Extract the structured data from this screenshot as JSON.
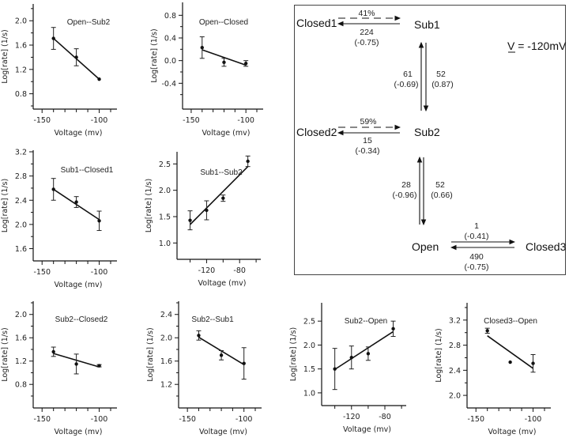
{
  "chart_data": [
    {
      "type": "scatter",
      "id": "open-sub2",
      "title": "Open--Sub2",
      "xlabel": "Voltage  (mv)",
      "ylabel": "Log[rate]  (1/s)",
      "xlim": [
        -155,
        -90
      ],
      "ylim": [
        0.6,
        2.25
      ],
      "xticks": [
        -150,
        -140,
        -130,
        -120,
        -110,
        -100,
        -90
      ],
      "xticklabels": [
        "-150",
        "",
        "",
        "",
        "",
        "-100",
        ""
      ],
      "yticks": [
        0.6,
        0.8,
        1.0,
        1.2,
        1.4,
        1.6,
        1.8,
        2.0,
        2.2
      ],
      "yticklabels": [
        "",
        "0.8",
        "",
        "1.2",
        "",
        "1.6",
        "",
        "2.0",
        ""
      ],
      "points": [
        {
          "x": -140,
          "y": 1.71,
          "err": 0.18
        },
        {
          "x": -120,
          "y": 1.4,
          "err": 0.14
        },
        {
          "x": -100,
          "y": 1.04,
          "err": 0
        }
      ],
      "fit": [
        [
          -140,
          1.71
        ],
        [
          -100,
          1.04
        ]
      ]
    },
    {
      "type": "scatter",
      "id": "open-closed",
      "title": "Open--Closed",
      "xlabel": "Voltage  (mv)",
      "ylabel": "Log[rate]  (1/s)",
      "xlim": [
        -155,
        -90
      ],
      "ylim": [
        -0.8,
        1.0
      ],
      "xticks": [
        -150,
        -140,
        -130,
        -120,
        -110,
        -100,
        -90
      ],
      "xticklabels": [
        "-150",
        "",
        "",
        "",
        "",
        "-100",
        ""
      ],
      "yticks": [
        -0.6,
        -0.4,
        -0.2,
        0.0,
        0.2,
        0.4,
        0.6,
        0.8
      ],
      "yticklabels": [
        "",
        "-0.4",
        "",
        "0.0",
        "",
        "0.4",
        "",
        "0.8"
      ],
      "points": [
        {
          "x": -140,
          "y": 0.23,
          "err": 0.19
        },
        {
          "x": -120,
          "y": -0.03,
          "err": 0.07
        },
        {
          "x": -100,
          "y": -0.05,
          "err": 0.05
        }
      ],
      "fit": [
        [
          -140,
          0.19
        ],
        [
          -100,
          -0.08
        ]
      ]
    },
    {
      "type": "scatter",
      "id": "sub1-closed1",
      "title": "Sub1--Closed1",
      "xlabel": "Voltage  (mv)",
      "ylabel": "Log[rate]  (1/s)",
      "xlim": [
        -155,
        -90
      ],
      "ylim": [
        1.45,
        3.2
      ],
      "xticks": [
        -150,
        -140,
        -130,
        -120,
        -110,
        -100,
        -90
      ],
      "xticklabels": [
        "-150",
        "",
        "",
        "",
        "",
        "-100",
        ""
      ],
      "yticks": [
        1.6,
        1.8,
        2.0,
        2.2,
        2.4,
        2.6,
        2.8,
        3.0,
        3.2
      ],
      "yticklabels": [
        "1.6",
        "",
        "2.0",
        "",
        "2.4",
        "",
        "2.8",
        "",
        "3.2"
      ],
      "points": [
        {
          "x": -140,
          "y": 2.58,
          "err": 0.18
        },
        {
          "x": -120,
          "y": 2.37,
          "err": 0.09
        },
        {
          "x": -100,
          "y": 2.06,
          "err": 0.16
        }
      ],
      "fit": [
        [
          -140,
          2.58
        ],
        [
          -100,
          2.08
        ]
      ]
    },
    {
      "type": "scatter",
      "id": "sub1-sub2",
      "title": "Sub1--Sub2",
      "xlabel": "Voltage  (mv)",
      "ylabel": "Log[rate]  (1/s)",
      "xlim": [
        -152,
        -62
      ],
      "ylim": [
        0.75,
        2.7
      ],
      "xticks": [
        -140,
        -120,
        -100,
        -80,
        -60
      ],
      "xticklabels": [
        "",
        "-120",
        "",
        "-80",
        ""
      ],
      "yticks": [
        1.0,
        1.5,
        2.0,
        2.5
      ],
      "yticklabels": [
        "1.0",
        "1.5",
        "2.0",
        "2.5"
      ],
      "points": [
        {
          "x": -140,
          "y": 1.43,
          "err": 0.18
        },
        {
          "x": -120,
          "y": 1.62,
          "err": 0.18
        },
        {
          "x": -100,
          "y": 1.85,
          "err": 0.06
        },
        {
          "x": -70,
          "y": 2.55,
          "err": 0.1
        }
      ],
      "fit": [
        [
          -140,
          1.35
        ],
        [
          -70,
          2.45
        ]
      ]
    },
    {
      "type": "scatter",
      "id": "sub2-closed2",
      "title": "Sub2--Closed2",
      "xlabel": "Voltage  (mv)",
      "ylabel": "Log[rate]  (1/s)",
      "xlim": [
        -155,
        -90
      ],
      "ylim": [
        0.45,
        2.2
      ],
      "xticks": [
        -150,
        -140,
        -130,
        -120,
        -110,
        -100,
        -90
      ],
      "xticklabels": [
        "-150",
        "",
        "",
        "",
        "",
        "-100",
        ""
      ],
      "yticks": [
        0.6,
        0.8,
        1.0,
        1.2,
        1.4,
        1.6,
        1.8,
        2.0,
        2.2
      ],
      "yticklabels": [
        "",
        "0.8",
        "",
        "1.2",
        "",
        "1.6",
        "",
        "2.0",
        ""
      ],
      "points": [
        {
          "x": -140,
          "y": 1.36,
          "err": 0.08
        },
        {
          "x": -120,
          "y": 1.15,
          "err": 0.17
        },
        {
          "x": -100,
          "y": 1.12,
          "err": 0.02
        }
      ],
      "fit": [
        [
          -140,
          1.33
        ],
        [
          -100,
          1.1
        ]
      ]
    },
    {
      "type": "scatter",
      "id": "sub2-sub1",
      "title": "Sub2--Sub1",
      "xlabel": "Voltage  (mv)",
      "ylabel": "Log[rate]  (1/s)",
      "xlim": [
        -155,
        -90
      ],
      "ylim": [
        0.85,
        2.6
      ],
      "xticks": [
        -150,
        -140,
        -130,
        -120,
        -110,
        -100,
        -90
      ],
      "xticklabels": [
        "-150",
        "",
        "",
        "",
        "",
        "-100",
        ""
      ],
      "yticks": [
        1.0,
        1.2,
        1.4,
        1.6,
        1.8,
        2.0,
        2.2,
        2.4,
        2.6
      ],
      "yticklabels": [
        "",
        "1.2",
        "",
        "1.6",
        "",
        "2.0",
        "",
        "2.4",
        ""
      ],
      "points": [
        {
          "x": -140,
          "y": 2.04,
          "err": 0.08
        },
        {
          "x": -120,
          "y": 1.7,
          "err": 0.08
        },
        {
          "x": -100,
          "y": 1.56,
          "err": 0.27
        }
      ],
      "fit": [
        [
          -140,
          2.01
        ],
        [
          -100,
          1.54
        ]
      ]
    },
    {
      "type": "scatter",
      "id": "sub2-open",
      "title": "Sub2--Open",
      "xlabel": "Voltage  (mv)",
      "ylabel": "Log[rate]  (1/s)",
      "xlim": [
        -152,
        -62
      ],
      "ylim": [
        0.8,
        2.85
      ],
      "xticks": [
        -140,
        -120,
        -100,
        -80,
        -60
      ],
      "xticklabels": [
        "",
        "-120",
        "",
        "-80",
        ""
      ],
      "yticks": [
        1.0,
        1.5,
        2.0,
        2.5
      ],
      "yticklabels": [
        "1.0",
        "1.5",
        "2.0",
        "2.5"
      ],
      "points": [
        {
          "x": -140,
          "y": 1.5,
          "err": 0.43
        },
        {
          "x": -120,
          "y": 1.74,
          "err": 0.24
        },
        {
          "x": -100,
          "y": 1.82,
          "err": 0.14
        },
        {
          "x": -70,
          "y": 2.34,
          "err": 0.16
        }
      ],
      "fit": [
        [
          -140,
          1.49
        ],
        [
          -70,
          2.28
        ]
      ]
    },
    {
      "type": "scatter",
      "id": "closed3-open",
      "title": "Closed3--Open",
      "xlabel": "Voltage  (mv)",
      "ylabel": "Log[rate]  (1/s)",
      "xlim": [
        -155,
        -90
      ],
      "ylim": [
        1.85,
        3.45
      ],
      "xticks": [
        -150,
        -140,
        -130,
        -120,
        -110,
        -100,
        -90
      ],
      "xticklabels": [
        "-150",
        "",
        "",
        "",
        "",
        "-100",
        ""
      ],
      "yticks": [
        2.0,
        2.2,
        2.4,
        2.6,
        2.8,
        3.0,
        3.2,
        3.4
      ],
      "yticklabels": [
        "2.0",
        "",
        "2.4",
        "",
        "2.8",
        "",
        "3.2",
        ""
      ],
      "points": [
        {
          "x": -140,
          "y": 3.03,
          "err": 0.04
        },
        {
          "x": -120,
          "y": 2.53,
          "err": 0
        },
        {
          "x": -100,
          "y": 2.51,
          "err": 0.14
        }
      ],
      "fit": [
        [
          -140,
          2.95
        ],
        [
          -100,
          2.43
        ]
      ]
    }
  ],
  "scheme": {
    "voltage_label": "V = -120mV",
    "states": {
      "closed1": "Closed1",
      "sub1": "Sub1",
      "closed2": "Closed2",
      "sub2": "Sub2",
      "open": "Open",
      "closed3": "Closed3"
    },
    "transitions": {
      "closed1_sub1_fraction": "41%",
      "sub1_closed1_rate": "224",
      "sub1_closed1_z": "(-0.75)",
      "sub2_sub1_rate": "61",
      "sub2_sub1_z": "(-0.69)",
      "sub1_sub2_rate": "52",
      "sub1_sub2_z": "(0.87)",
      "closed2_sub2_fraction": "59%",
      "sub2_closed2_rate": "15",
      "sub2_closed2_z": "(-0.34)",
      "open_sub2_rate": "28",
      "open_sub2_z": "(-0.96)",
      "sub2_open_rate": "52",
      "sub2_open_z": "(0.66)",
      "open_closed3_rate": "1",
      "open_closed3_z": "(-0.41)",
      "closed3_open_rate": "490",
      "closed3_open_z": "(-0.75)"
    }
  }
}
